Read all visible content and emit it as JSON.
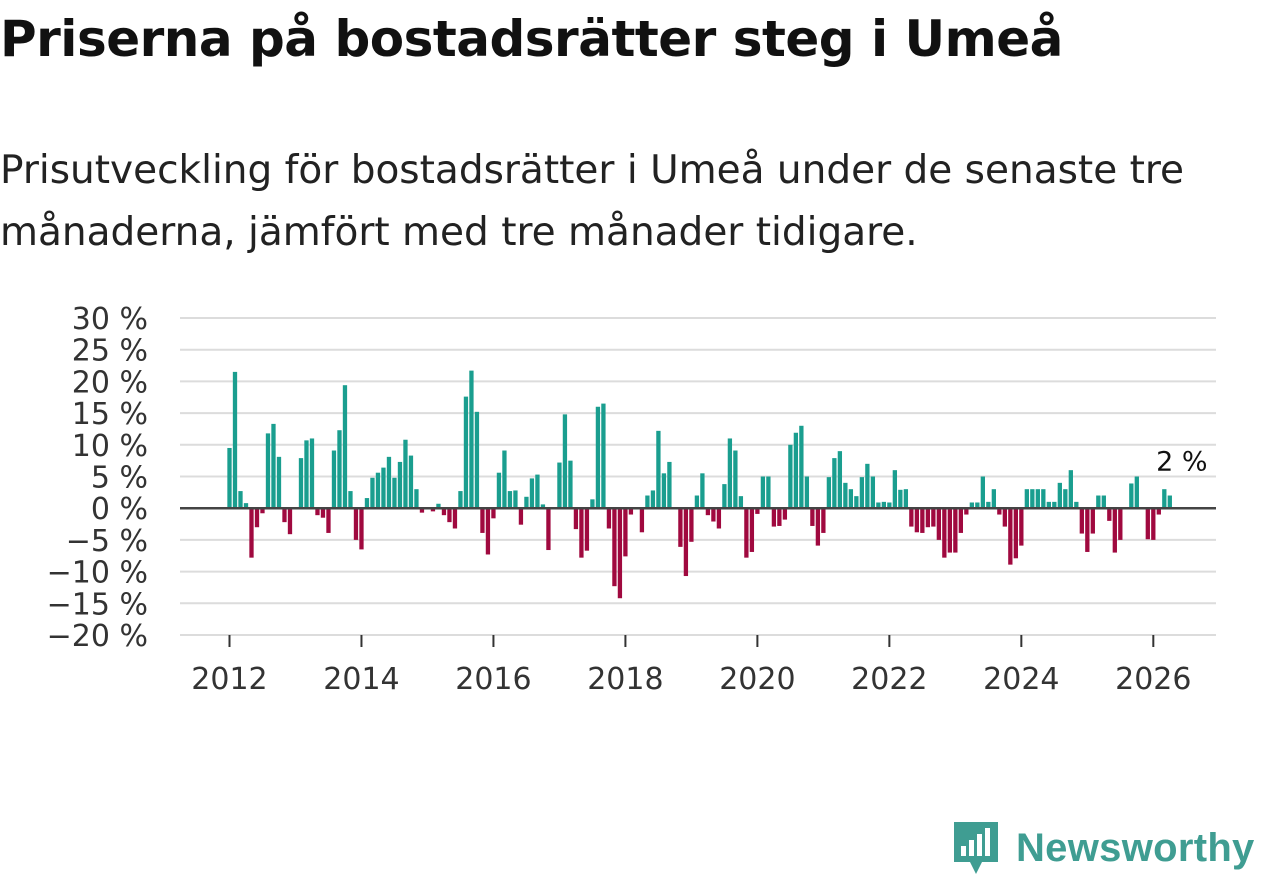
{
  "header": {
    "title": "Priserna på bostadsrätter steg i Umeå",
    "subtitle": "Prisutveckling för bostadsrätter i Umeå under de senaste tre månaderna, jämfört med tre månader tidigare."
  },
  "brand": {
    "name": "Newsworthy",
    "icon": "newsworthy-logo-icon",
    "color": "#3f9d92"
  },
  "colors": {
    "positive": "#1a9e8f",
    "negative": "#a0093f",
    "grid": "#dcdcdc",
    "zero_line": "#444444"
  },
  "chart_data": {
    "type": "bar",
    "title": "Prisutveckling för bostadsrätter i Umeå",
    "xlabel": "",
    "ylabel": "",
    "ylim": [
      -20,
      30
    ],
    "xlim": [
      2011.25,
      2026.95
    ],
    "grid": true,
    "y_ticks": [
      {
        "value": 30,
        "label": "30 %"
      },
      {
        "value": 25,
        "label": "25 %"
      },
      {
        "value": 20,
        "label": "20 %"
      },
      {
        "value": 15,
        "label": "15 %"
      },
      {
        "value": 10,
        "label": "10 %"
      },
      {
        "value": 5,
        "label": "5 %"
      },
      {
        "value": 0,
        "label": "0 %"
      },
      {
        "value": -5,
        "label": "−5 %"
      },
      {
        "value": -10,
        "label": "−10 %"
      },
      {
        "value": -15,
        "label": "−15 %"
      },
      {
        "value": -20,
        "label": "−20 %"
      }
    ],
    "x_ticks": [
      {
        "value": 2012,
        "label": "2012"
      },
      {
        "value": 2014,
        "label": "2014"
      },
      {
        "value": 2016,
        "label": "2016"
      },
      {
        "value": 2018,
        "label": "2018"
      },
      {
        "value": 2020,
        "label": "2020"
      },
      {
        "value": 2022,
        "label": "2022"
      },
      {
        "value": 2024,
        "label": "2024"
      },
      {
        "value": 2026,
        "label": "2026"
      }
    ],
    "start": {
      "year": 2012,
      "month": 1
    },
    "series": [
      {
        "name": "Prisutveckling (%)",
        "values": [
          9.5,
          21.5,
          2.7,
          0.8,
          -7.8,
          -3.0,
          -0.8,
          11.8,
          13.3,
          8.1,
          -2.2,
          -4.1,
          0.0,
          7.9,
          10.7,
          11.0,
          -1.1,
          -1.5,
          -3.9,
          9.1,
          12.3,
          19.4,
          2.7,
          -5.0,
          -6.5,
          1.6,
          4.8,
          5.6,
          6.4,
          8.1,
          4.8,
          7.3,
          10.8,
          8.3,
          3.0,
          -0.7,
          0.0,
          -0.5,
          0.7,
          -1.1,
          -2.2,
          -3.2,
          2.7,
          17.6,
          21.7,
          15.2,
          -3.9,
          -7.3,
          -1.6,
          5.6,
          9.1,
          2.7,
          2.8,
          -2.6,
          1.8,
          4.7,
          5.3,
          0.6,
          -6.6,
          0.0,
          7.2,
          14.8,
          7.5,
          -3.3,
          -7.8,
          -6.7,
          1.4,
          16.0,
          16.5,
          -3.2,
          -12.3,
          -14.2,
          -7.6,
          -1.0,
          0.0,
          -3.8,
          2.0,
          2.8,
          12.2,
          5.5,
          7.3,
          0.0,
          -6.1,
          -10.7,
          -5.3,
          2.0,
          5.5,
          -1.1,
          -2.1,
          -3.2,
          3.8,
          11.0,
          9.1,
          1.9,
          -7.8,
          -6.9,
          -0.9,
          5.0,
          5.0,
          -2.9,
          -2.8,
          -1.8,
          10.0,
          11.9,
          13.0,
          5.0,
          -2.8,
          -5.9,
          -3.9,
          4.9,
          7.9,
          9.0,
          4.0,
          3.0,
          1.9,
          4.9,
          7.0,
          5.0,
          0.9,
          1.0,
          0.9,
          6.0,
          2.9,
          3.0,
          -2.9,
          -3.8,
          -3.9,
          -3.0,
          -2.9,
          -5.0,
          -7.8,
          -7.0,
          -7.0,
          -3.9,
          -1.0,
          0.9,
          0.9,
          5.0,
          1.0,
          3.0,
          -1.0,
          -2.9,
          -8.9,
          -7.9,
          -5.9,
          3.0,
          3.0,
          3.0,
          3.0,
          1.0,
          1.0,
          4.0,
          3.0,
          6.0,
          1.0,
          -4.0,
          -6.9,
          -4.0,
          2.0,
          2.0,
          -2.0,
          -7.0,
          -5.0,
          0.0,
          3.9,
          5.0,
          0.0,
          -4.9,
          -5.0,
          -1.0,
          3.0,
          2.0
        ]
      }
    ],
    "annotations": [
      {
        "text": "2 %",
        "anchor": "last-bar"
      }
    ]
  }
}
